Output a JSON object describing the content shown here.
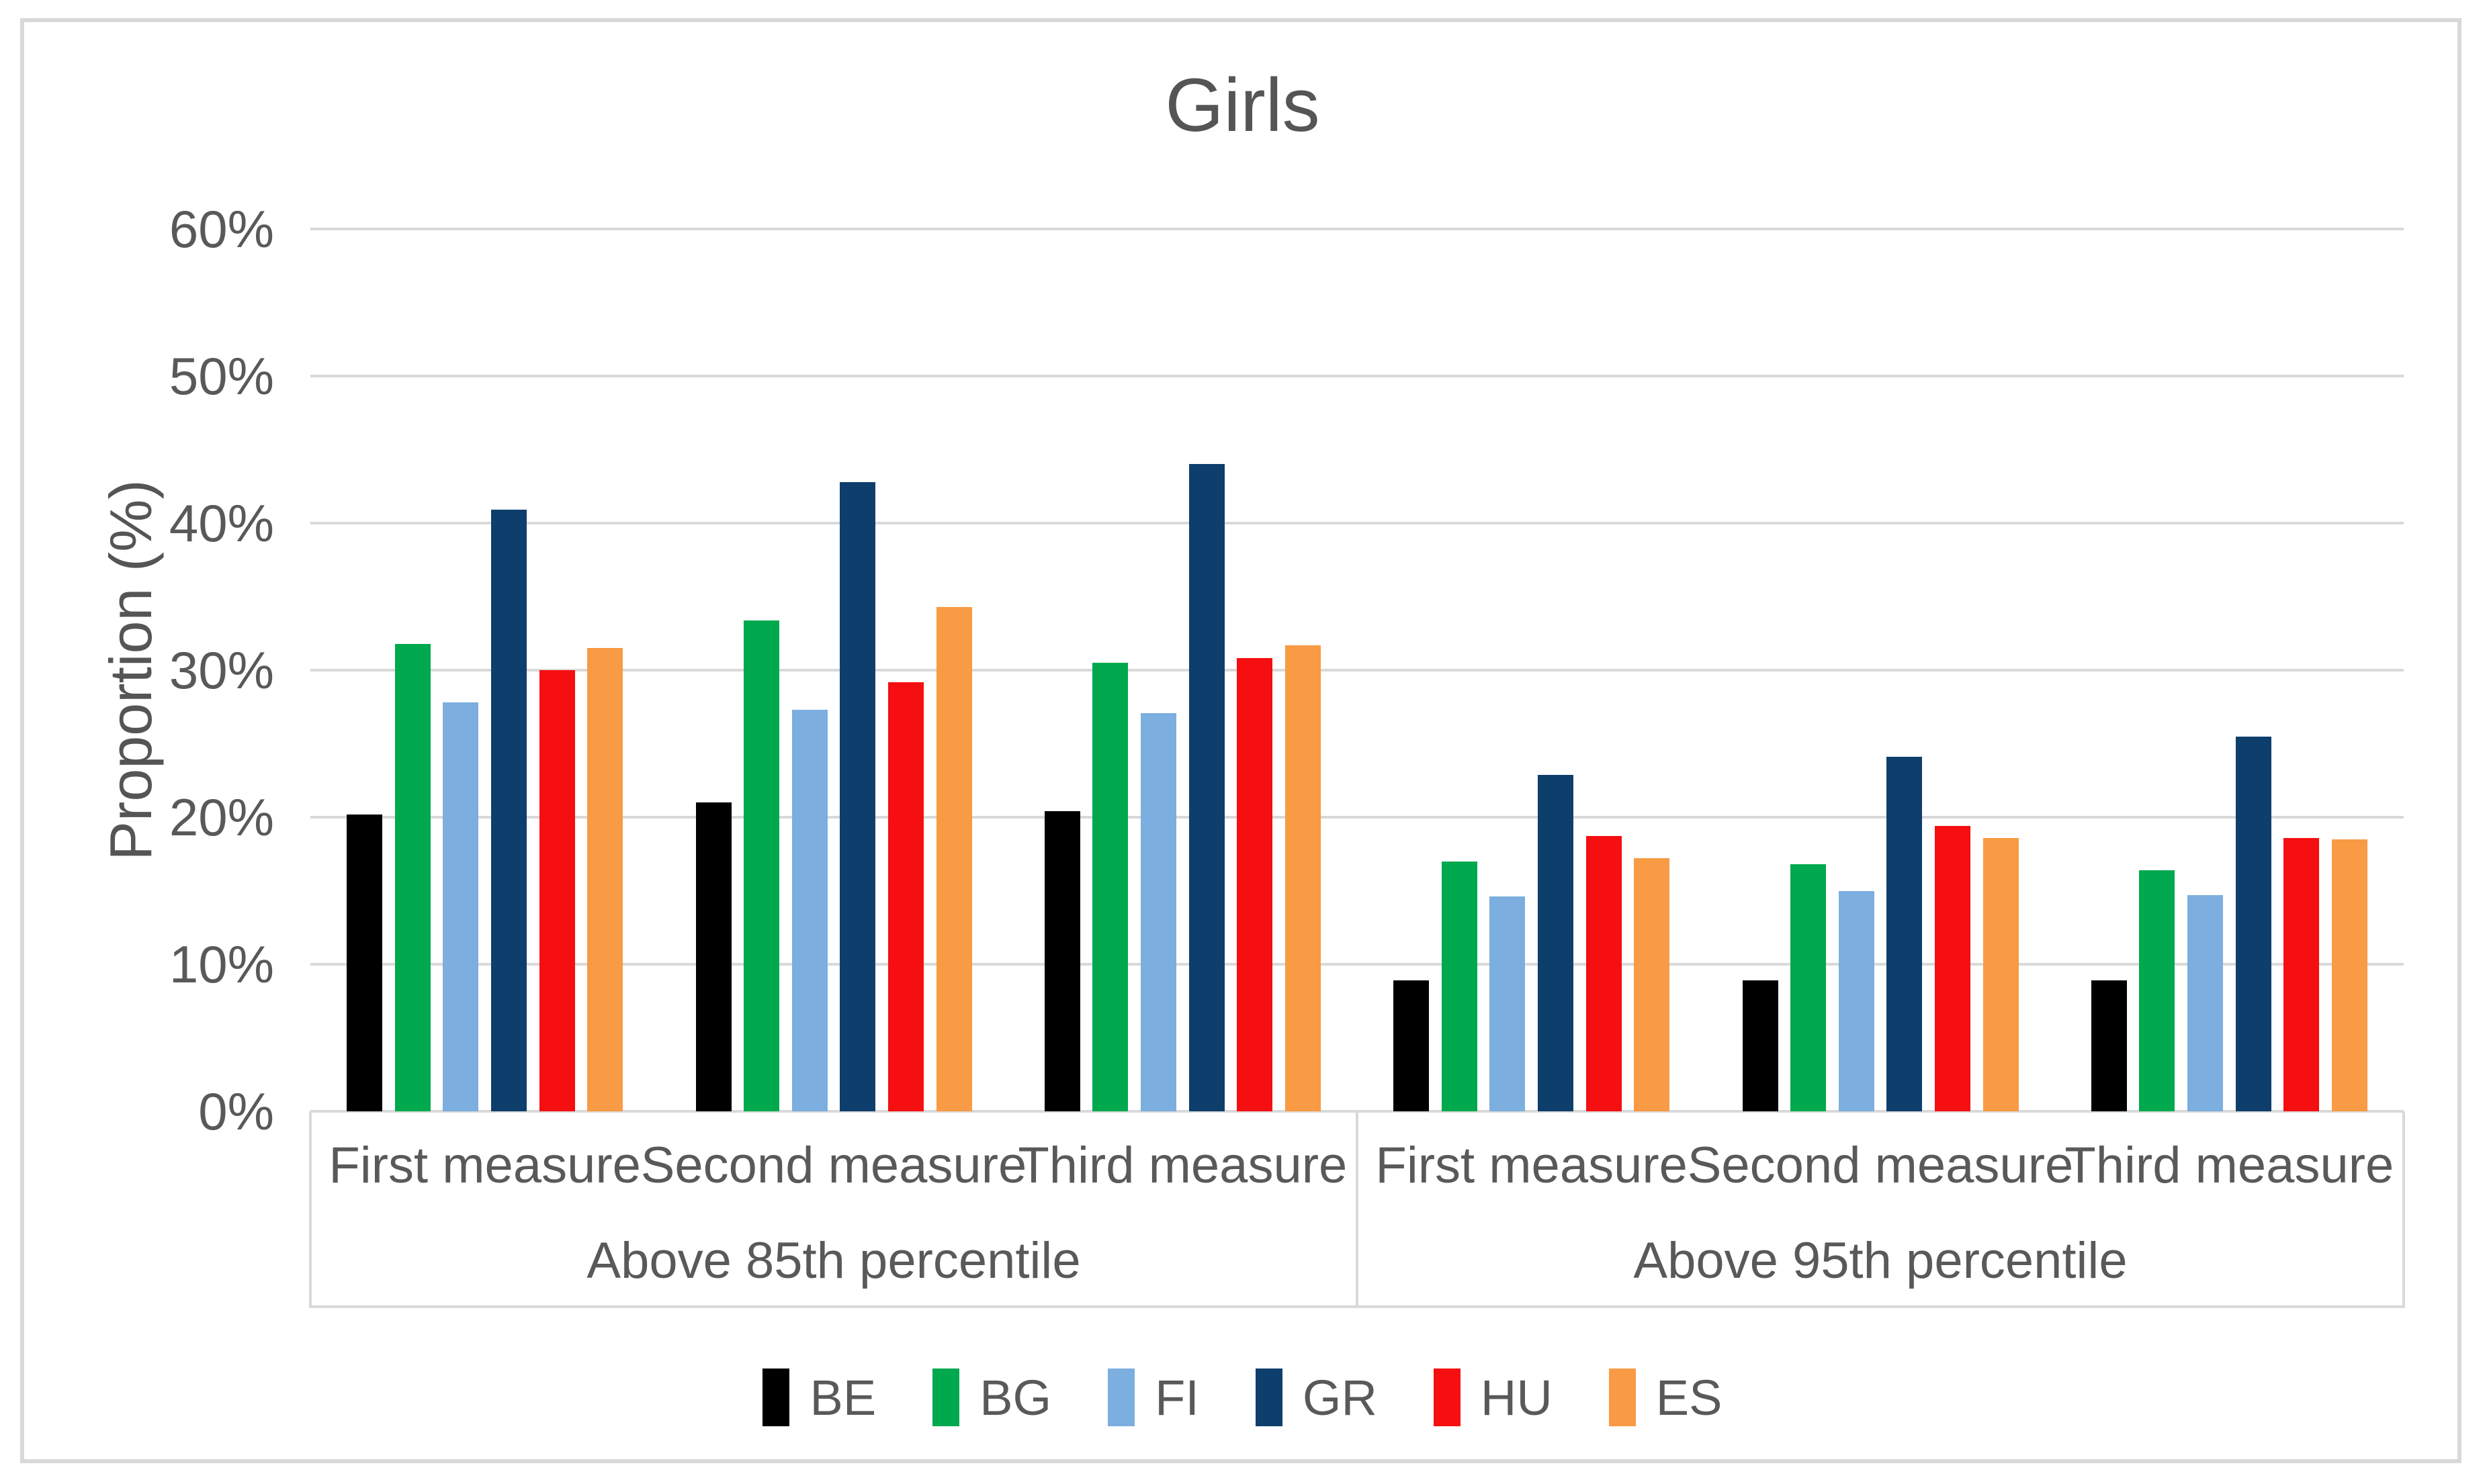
{
  "title": "Girls",
  "y_axis": {
    "label": "Proportion (%)",
    "ticks": [
      "60%",
      "50%",
      "40%",
      "30%",
      "20%",
      "10%",
      "0%"
    ]
  },
  "legend": {
    "items": [
      "BE",
      "BG",
      "FI",
      "GR",
      "HU",
      "ES"
    ]
  },
  "colors": {
    "BE": "#000000",
    "BG": "#00A84E",
    "FI": "#7CAEDF",
    "GR": "#0E3E6C",
    "HU": "#F50F10",
    "ES": "#F99A44",
    "gridline": "#D9D9D9",
    "text": "#595959"
  },
  "chart_data": {
    "type": "bar",
    "title": "Girls",
    "xlabel": "",
    "ylabel": "Proportion (%)",
    "ylim": [
      0,
      60
    ],
    "y_tick_step": 10,
    "y_tick_format": "percent",
    "grid": true,
    "legend_position": "bottom",
    "categories": [
      "First measure",
      "Second measure",
      "Third measure",
      "First measure",
      "Second measure",
      "Third measure"
    ],
    "group_labels": [
      {
        "label": "Above 85th percentile",
        "span": [
          0,
          2
        ]
      },
      {
        "label": "Above 95th percentile",
        "span": [
          3,
          5
        ]
      }
    ],
    "series": [
      {
        "name": "BE",
        "color": "#000000",
        "values": [
          20.2,
          21.0,
          20.4,
          8.9,
          8.9,
          8.9
        ]
      },
      {
        "name": "BG",
        "color": "#00A84E",
        "values": [
          31.8,
          33.4,
          30.5,
          17.0,
          16.8,
          16.4
        ]
      },
      {
        "name": "FI",
        "color": "#7CAEDF",
        "values": [
          27.8,
          27.3,
          27.1,
          14.6,
          15.0,
          14.7
        ]
      },
      {
        "name": "GR",
        "color": "#0E3E6C",
        "values": [
          40.9,
          42.8,
          44.0,
          22.9,
          24.1,
          25.5
        ]
      },
      {
        "name": "HU",
        "color": "#F50F10",
        "values": [
          30.0,
          29.2,
          30.8,
          18.7,
          19.4,
          18.6
        ]
      },
      {
        "name": "ES",
        "color": "#F99A44",
        "values": [
          31.5,
          34.3,
          31.7,
          17.2,
          18.6,
          18.5
        ]
      }
    ]
  }
}
